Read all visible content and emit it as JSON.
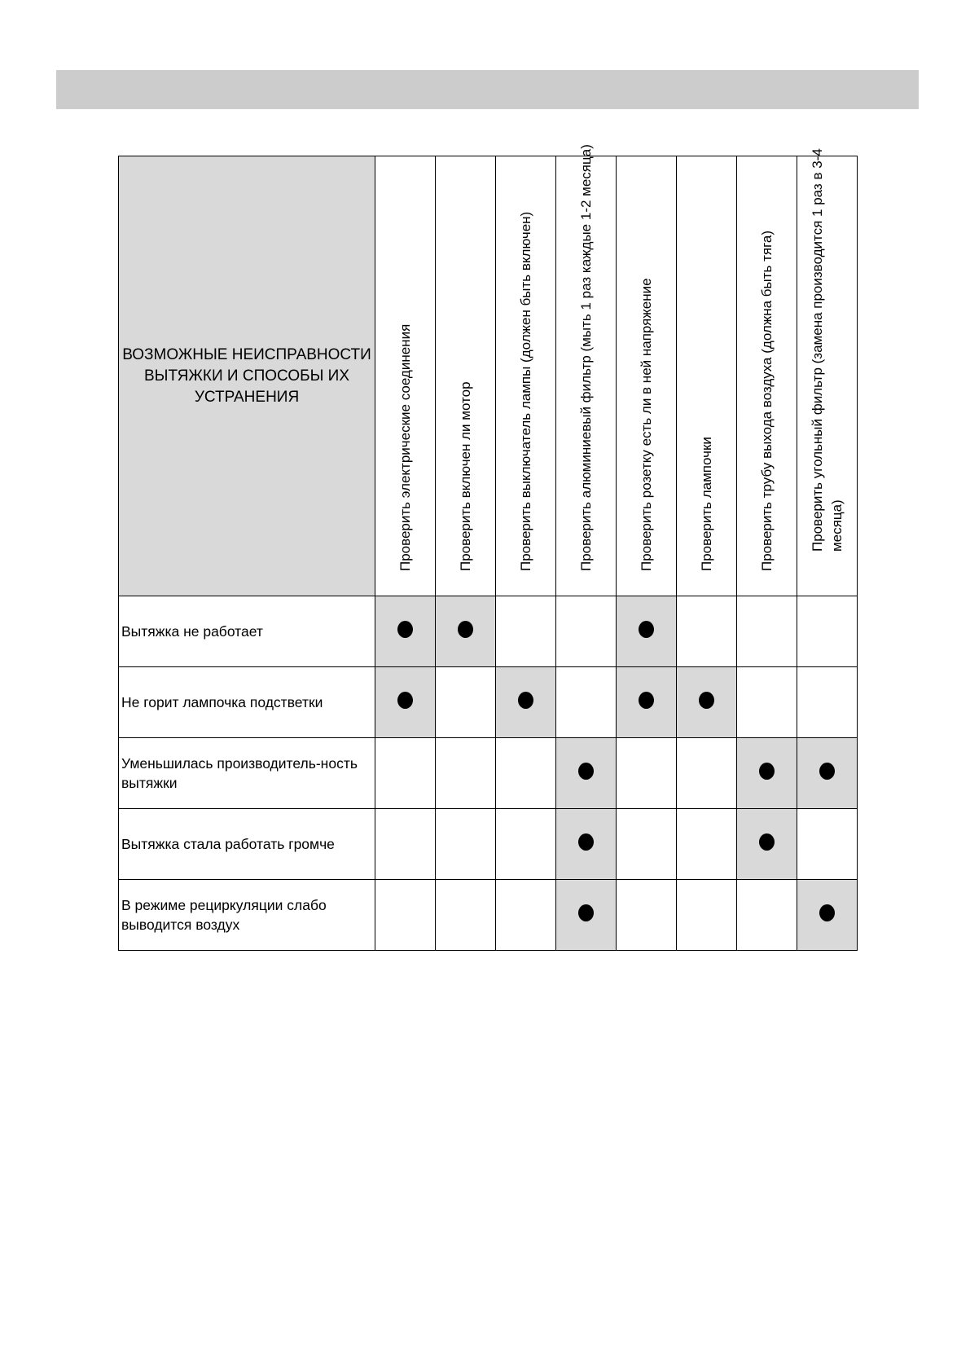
{
  "header_title": "ВОЗМОЖНЫЕ НЕИСПРАВНОСТИ ВЫТЯЖКИ И СПОСОБЫ ИХ УСТРАНЕНИЯ",
  "columns": [
    "Проверить электрические соединения",
    "Проверить включен ли мотор",
    "Проверить выключатель лампы (должен быть включен)",
    "Проверить алюминиевый фильтр (мыть 1 раз каждые 1-2 месяца)",
    "Проверить розетку есть ли в ней напряжение",
    "Проверить лампочки",
    "Проверить трубу выхода воздуха (должна быть тяга)",
    "Проверить угольный фильтр (замена производится 1 раз в 3-4 месяца)"
  ],
  "rows": [
    {
      "label": "Вытяжка не работает",
      "marks": [
        1,
        1,
        0,
        0,
        1,
        0,
        0,
        0
      ]
    },
    {
      "label": "Не горит лампочка подстветки",
      "marks": [
        1,
        0,
        1,
        0,
        1,
        1,
        0,
        0
      ]
    },
    {
      "label": "Уменьшилась производитель-ность вытяжки",
      "marks": [
        0,
        0,
        0,
        1,
        0,
        0,
        1,
        1
      ]
    },
    {
      "label": "Вытяжка стала работать громче",
      "marks": [
        0,
        0,
        0,
        1,
        0,
        0,
        1,
        0
      ]
    },
    {
      "label": "В режиме рециркуляции слабо выводится воздух",
      "marks": [
        0,
        0,
        0,
        1,
        0,
        0,
        0,
        1
      ]
    }
  ],
  "colors": {
    "highlight": "#d9d9d9",
    "topbar": "#cccccc"
  }
}
